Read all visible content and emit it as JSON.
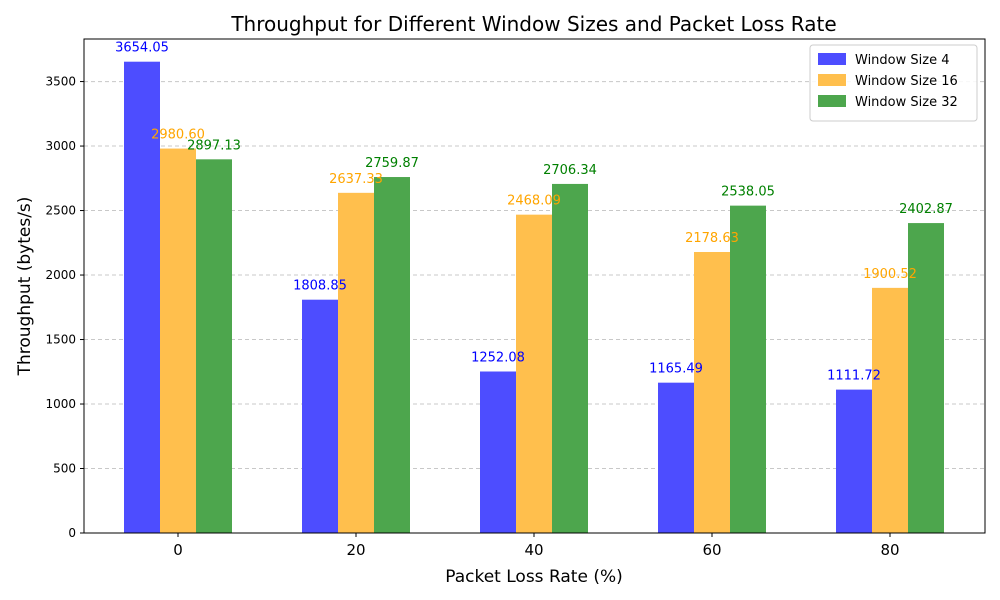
{
  "chart_data": {
    "type": "bar",
    "title": "Throughput for Different Window Sizes and Packet Loss Rate",
    "xlabel": "Packet Loss Rate (%)",
    "ylabel": "Throughput (bytes/s)",
    "categories": [
      "0",
      "20",
      "40",
      "60",
      "80"
    ],
    "ylim": [
      0,
      3830
    ],
    "yticks": [
      "0",
      "500",
      "1000",
      "1500",
      "2000",
      "2500",
      "3000",
      "3500"
    ],
    "grid": "y-dashed",
    "legend_position": "top-right",
    "series": [
      {
        "name": "Window Size 4",
        "color": "#4d4dff",
        "label_color": "#0000ff",
        "values": [
          3654.05,
          1808.85,
          1252.08,
          1165.49,
          1111.72
        ],
        "labels": [
          "3654.05",
          "1808.85",
          "1252.08",
          "1165.49",
          "1111.72"
        ]
      },
      {
        "name": "Window Size 16",
        "color": "#ffbf4d",
        "label_color": "#ffa500",
        "values": [
          2980.6,
          2637.33,
          2468.09,
          2178.63,
          1900.52
        ],
        "labels": [
          "2980.60",
          "2637.33",
          "2468.09",
          "2178.63",
          "1900.52"
        ]
      },
      {
        "name": "Window Size 32",
        "color": "#4da64d",
        "label_color": "#008000",
        "values": [
          2897.13,
          2759.87,
          2706.34,
          2538.05,
          2402.87
        ],
        "labels": [
          "2897.13",
          "2759.87",
          "2706.34",
          "2538.05",
          "2402.87"
        ]
      }
    ]
  }
}
